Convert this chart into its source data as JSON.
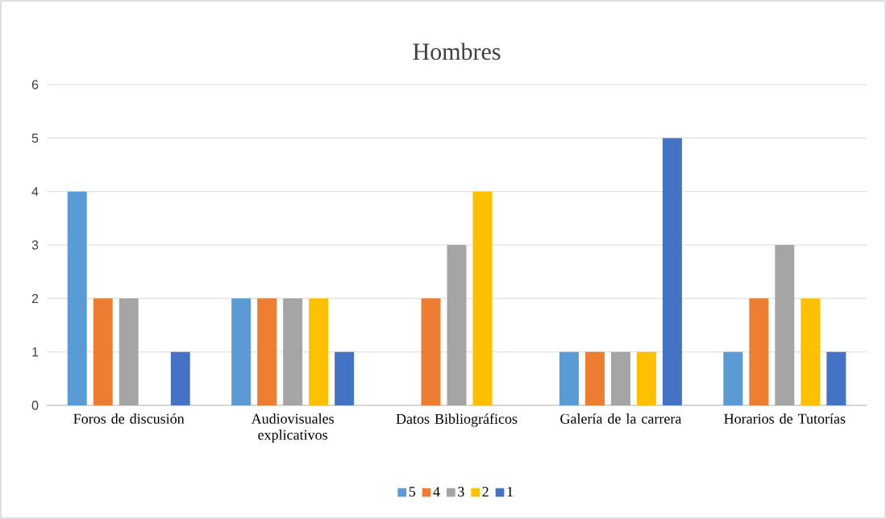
{
  "chart_data": {
    "type": "bar",
    "title": "Hombres",
    "categories": [
      "Foros de discusión",
      "Audiovisuales explicativos",
      "Datos Bibliográficos",
      "Galería de la carrera",
      "Horarios de Tutorías"
    ],
    "series": [
      {
        "name": "5",
        "color": "#5b9bd5",
        "values": [
          4,
          2,
          0,
          1,
          1
        ]
      },
      {
        "name": "4",
        "color": "#ed7d31",
        "values": [
          2,
          2,
          2,
          1,
          2
        ]
      },
      {
        "name": "3",
        "color": "#a5a5a5",
        "values": [
          2,
          2,
          3,
          1,
          3
        ]
      },
      {
        "name": "2",
        "color": "#ffc000",
        "values": [
          0,
          2,
          4,
          1,
          2
        ]
      },
      {
        "name": "1",
        "color": "#4472c4",
        "values": [
          1,
          1,
          0,
          5,
          1
        ]
      }
    ],
    "ylim": [
      0,
      6
    ],
    "yticks": [
      0,
      1,
      2,
      3,
      4,
      5,
      6
    ],
    "grid": "y",
    "legend": "bottom"
  }
}
